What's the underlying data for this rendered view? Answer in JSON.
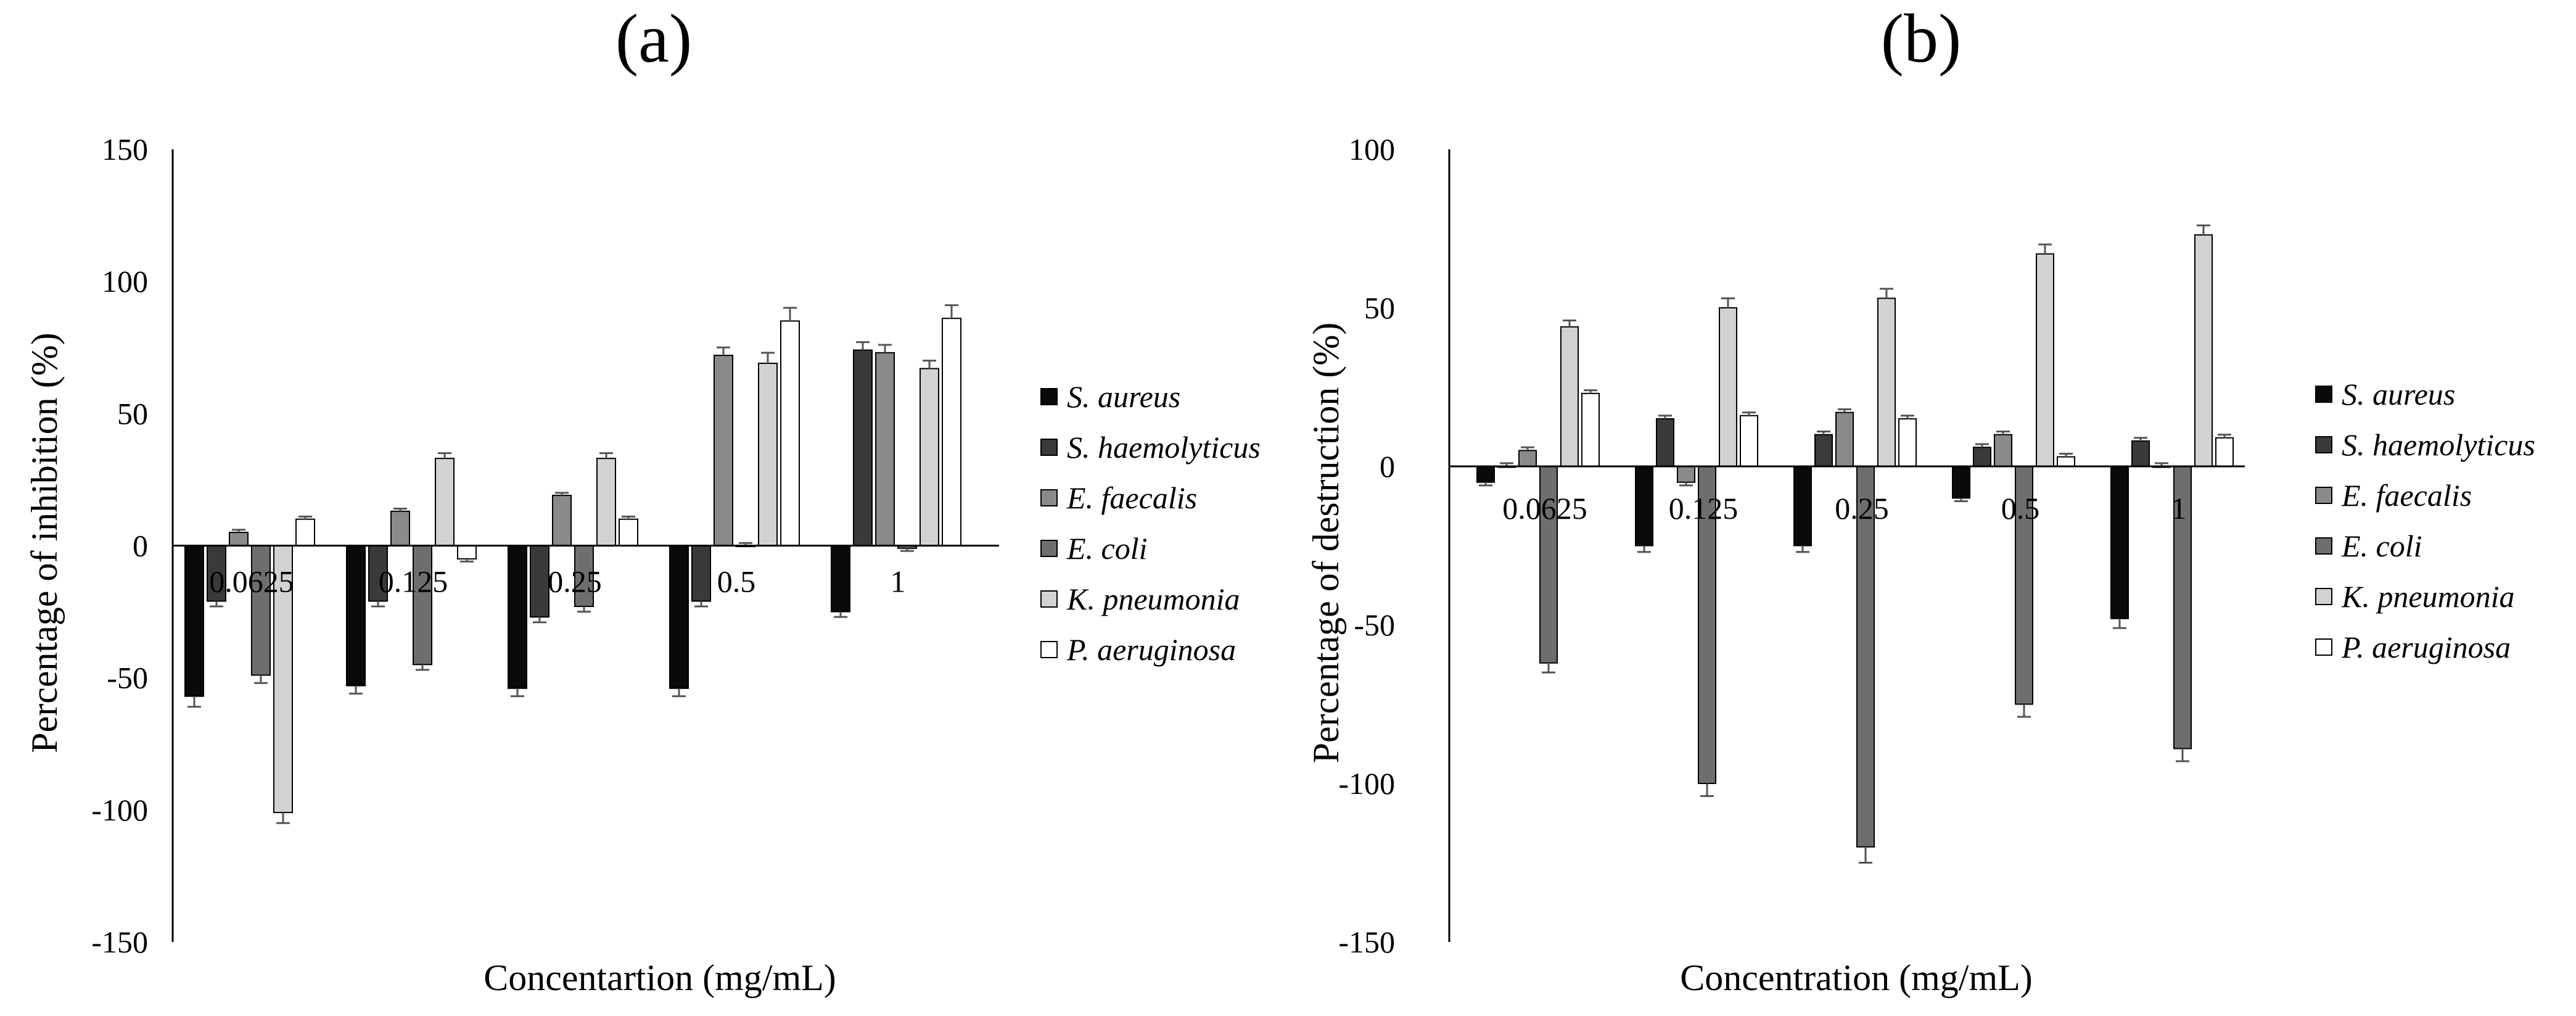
{
  "chart_data": [
    {
      "type": "bar",
      "title": "(a)",
      "xlabel": "Concentartion (mg/mL)",
      "ylabel": "Percentage of inhibition (%)",
      "ylim": [
        -150,
        150
      ],
      "yticks": [
        150,
        100,
        50,
        0,
        -50,
        -100,
        -150
      ],
      "categories": [
        "0.0625",
        "0.125",
        "0.25",
        "0.5",
        "1"
      ],
      "series": [
        {
          "name": "S. aureus",
          "color": "#0a0a0a",
          "values": [
            -57,
            -53,
            -54,
            -54,
            -25
          ],
          "errors": [
            4,
            3,
            3,
            3,
            2
          ]
        },
        {
          "name": "S. haemolyticus",
          "color": "#3a3a3a",
          "values": [
            -21,
            -21,
            -27,
            -21,
            74
          ],
          "errors": [
            2,
            2,
            2,
            2,
            3
          ]
        },
        {
          "name": "E. faecalis",
          "color": "#8a8a8a",
          "values": [
            5,
            13,
            19,
            72,
            73
          ],
          "errors": [
            1,
            1,
            1,
            3,
            3
          ]
        },
        {
          "name": "E. coli",
          "color": "#6e6e6e",
          "values": [
            -49,
            -45,
            -23,
            0,
            -1
          ],
          "errors": [
            3,
            2,
            2,
            1,
            1
          ]
        },
        {
          "name": "K. pneumonia",
          "color": "#d2d2d2",
          "values": [
            -101,
            33,
            33,
            69,
            67
          ],
          "errors": [
            4,
            2,
            2,
            4,
            3
          ]
        },
        {
          "name": "P. aeruginosa",
          "color": "#ffffff",
          "values": [
            10,
            -5,
            10,
            85,
            86
          ],
          "errors": [
            1,
            1,
            1,
            5,
            5
          ]
        }
      ]
    },
    {
      "type": "bar",
      "title": "(b)",
      "xlabel": "Concentration (mg/mL)",
      "ylabel": "Percentage of destruction (%)",
      "ylim": [
        -150,
        100
      ],
      "yticks": [
        100,
        50,
        0,
        -50,
        -100,
        -150
      ],
      "categories": [
        "0.0625",
        "0.125",
        "0.25",
        "0.5",
        "1"
      ],
      "series": [
        {
          "name": "S. aureus",
          "color": "#0a0a0a",
          "values": [
            -5,
            -25,
            -25,
            -10,
            -48
          ],
          "errors": [
            1,
            2,
            2,
            1,
            3
          ]
        },
        {
          "name": "S. haemolyticus",
          "color": "#3a3a3a",
          "values": [
            0,
            15,
            10,
            6,
            8
          ],
          "errors": [
            1,
            1,
            1,
            1,
            1
          ]
        },
        {
          "name": "E. faecalis",
          "color": "#8a8a8a",
          "values": [
            5,
            -5,
            17,
            10,
            0
          ],
          "errors": [
            1,
            1,
            1,
            1,
            1
          ]
        },
        {
          "name": "E. coli",
          "color": "#6e6e6e",
          "values": [
            -62,
            -100,
            -120,
            -75,
            -89
          ],
          "errors": [
            3,
            4,
            5,
            4,
            4
          ]
        },
        {
          "name": "K. pneumonia",
          "color": "#d2d2d2",
          "values": [
            44,
            50,
            53,
            67,
            73
          ],
          "errors": [
            2,
            3,
            3,
            3,
            3
          ]
        },
        {
          "name": "P. aeruginosa",
          "color": "#ffffff",
          "values": [
            23,
            16,
            15,
            3,
            9
          ],
          "errors": [
            1,
            1,
            1,
            1,
            1
          ]
        }
      ]
    }
  ]
}
